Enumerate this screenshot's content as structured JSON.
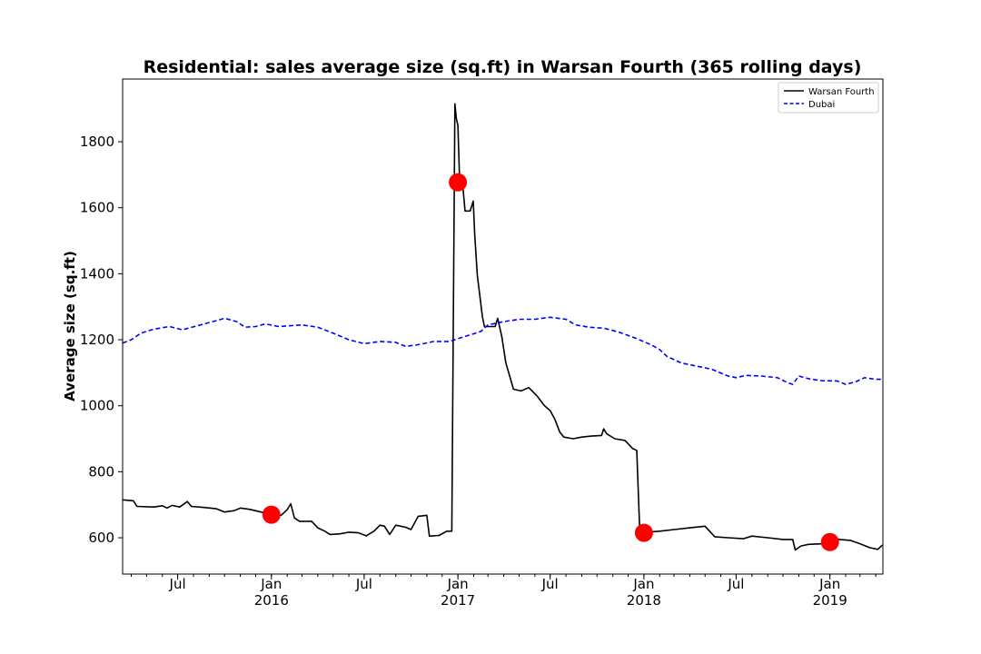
{
  "chart_data": {
    "type": "line",
    "title": "Residential: sales average size (sq.ft) in Warsan Fourth (365 rolling days)",
    "xlabel": "",
    "ylabel": "Average size (sq.ft)",
    "x_range": [
      "2015-03-15",
      "2019-04-15"
    ],
    "ylim": [
      490,
      1990
    ],
    "y_ticks": [
      600,
      800,
      1000,
      1200,
      1400,
      1600,
      1800
    ],
    "x_ticks": [
      {
        "date": "2015-07-01",
        "label": "Jul",
        "year": ""
      },
      {
        "date": "2016-01-01",
        "label": "Jan",
        "year": "2016"
      },
      {
        "date": "2016-07-01",
        "label": "Jul",
        "year": ""
      },
      {
        "date": "2017-01-01",
        "label": "Jan",
        "year": "2017"
      },
      {
        "date": "2017-07-01",
        "label": "Jul",
        "year": ""
      },
      {
        "date": "2018-01-01",
        "label": "Jan",
        "year": "2018"
      },
      {
        "date": "2018-07-01",
        "label": "Jul",
        "year": ""
      },
      {
        "date": "2019-01-01",
        "label": "Jan",
        "year": "2019"
      }
    ],
    "grid": false,
    "legend_position": "top-right",
    "series": [
      {
        "name": "Warsan Fourth",
        "color": "#000000",
        "style": "solid",
        "points": [
          [
            "2015-03-15",
            715
          ],
          [
            "2015-04-05",
            712
          ],
          [
            "2015-04-12",
            695
          ],
          [
            "2015-05-15",
            693
          ],
          [
            "2015-06-01",
            697
          ],
          [
            "2015-06-10",
            690
          ],
          [
            "2015-06-20",
            698
          ],
          [
            "2015-07-05",
            693
          ],
          [
            "2015-07-20",
            710
          ],
          [
            "2015-07-28",
            695
          ],
          [
            "2015-08-20",
            692
          ],
          [
            "2015-09-15",
            688
          ],
          [
            "2015-10-01",
            678
          ],
          [
            "2015-10-20",
            682
          ],
          [
            "2015-11-01",
            690
          ],
          [
            "2015-11-20",
            686
          ],
          [
            "2015-12-20",
            675
          ],
          [
            "2016-01-05",
            672
          ],
          [
            "2016-01-20",
            668
          ],
          [
            "2016-02-01",
            685
          ],
          [
            "2016-02-08",
            703
          ],
          [
            "2016-02-15",
            660
          ],
          [
            "2016-02-25",
            650
          ],
          [
            "2016-03-20",
            650
          ],
          [
            "2016-04-01",
            630
          ],
          [
            "2016-04-15",
            620
          ],
          [
            "2016-04-25",
            610
          ],
          [
            "2016-05-15",
            612
          ],
          [
            "2016-06-01",
            617
          ],
          [
            "2016-06-20",
            615
          ],
          [
            "2016-07-05",
            606
          ],
          [
            "2016-07-20",
            620
          ],
          [
            "2016-08-01",
            638
          ],
          [
            "2016-08-10",
            635
          ],
          [
            "2016-08-20",
            610
          ],
          [
            "2016-09-01",
            638
          ],
          [
            "2016-09-20",
            632
          ],
          [
            "2016-10-01",
            625
          ],
          [
            "2016-10-15",
            665
          ],
          [
            "2016-11-01",
            668
          ],
          [
            "2016-11-06",
            605
          ],
          [
            "2016-11-25",
            607
          ],
          [
            "2016-12-10",
            620
          ],
          [
            "2016-12-20",
            620
          ],
          [
            "2016-12-26",
            1915
          ],
          [
            "2016-12-29",
            1870
          ],
          [
            "2017-01-01",
            1850
          ],
          [
            "2017-01-04",
            1700
          ],
          [
            "2017-01-10",
            1675
          ],
          [
            "2017-01-15",
            1590
          ],
          [
            "2017-01-25",
            1590
          ],
          [
            "2017-01-31",
            1620
          ],
          [
            "2017-02-03",
            1520
          ],
          [
            "2017-02-08",
            1395
          ],
          [
            "2017-02-18",
            1270
          ],
          [
            "2017-02-22",
            1240
          ],
          [
            "2017-03-15",
            1240
          ],
          [
            "2017-03-20",
            1265
          ],
          [
            "2017-03-28",
            1210
          ],
          [
            "2017-04-05",
            1130
          ],
          [
            "2017-04-20",
            1050
          ],
          [
            "2017-05-05",
            1045
          ],
          [
            "2017-05-20",
            1055
          ],
          [
            "2017-06-05",
            1030
          ],
          [
            "2017-06-20",
            1000
          ],
          [
            "2017-07-01",
            985
          ],
          [
            "2017-07-10",
            960
          ],
          [
            "2017-07-20",
            920
          ],
          [
            "2017-07-28",
            905
          ],
          [
            "2017-08-15",
            900
          ],
          [
            "2017-09-01",
            905
          ],
          [
            "2017-09-20",
            908
          ],
          [
            "2017-10-10",
            910
          ],
          [
            "2017-10-14",
            930
          ],
          [
            "2017-10-20",
            915
          ],
          [
            "2017-11-05",
            900
          ],
          [
            "2017-11-25",
            895
          ],
          [
            "2017-12-10",
            870
          ],
          [
            "2017-12-18",
            865
          ],
          [
            "2017-12-24",
            615
          ],
          [
            "2018-01-15",
            618
          ],
          [
            "2018-02-01",
            620
          ],
          [
            "2018-03-01",
            625
          ],
          [
            "2018-04-01",
            630
          ],
          [
            "2018-05-01",
            635
          ],
          [
            "2018-05-20",
            603
          ],
          [
            "2018-06-15",
            600
          ],
          [
            "2018-07-15",
            597
          ],
          [
            "2018-08-01",
            605
          ],
          [
            "2018-09-01",
            600
          ],
          [
            "2018-10-01",
            595
          ],
          [
            "2018-10-20",
            595
          ],
          [
            "2018-10-25",
            563
          ],
          [
            "2018-11-05",
            575
          ],
          [
            "2018-11-20",
            580
          ],
          [
            "2018-12-20",
            582
          ],
          [
            "2019-01-01",
            600
          ],
          [
            "2019-01-20",
            595
          ],
          [
            "2019-02-10",
            592
          ],
          [
            "2019-03-01",
            582
          ],
          [
            "2019-03-20",
            570
          ],
          [
            "2019-04-05",
            565
          ],
          [
            "2019-04-12",
            575
          ],
          [
            "2019-04-15",
            578
          ]
        ]
      },
      {
        "name": "Dubai",
        "color": "#0000ff",
        "style": "dashed",
        "points": [
          [
            "2015-03-15",
            1190
          ],
          [
            "2015-04-01",
            1200
          ],
          [
            "2015-04-20",
            1220
          ],
          [
            "2015-05-15",
            1232
          ],
          [
            "2015-06-15",
            1240
          ],
          [
            "2015-07-10",
            1230
          ],
          [
            "2015-08-15",
            1245
          ],
          [
            "2015-09-15",
            1258
          ],
          [
            "2015-10-01",
            1265
          ],
          [
            "2015-10-25",
            1255
          ],
          [
            "2015-11-10",
            1238
          ],
          [
            "2015-12-01",
            1240
          ],
          [
            "2015-12-20",
            1248
          ],
          [
            "2016-01-15",
            1240
          ],
          [
            "2016-03-01",
            1245
          ],
          [
            "2016-04-01",
            1238
          ],
          [
            "2016-05-01",
            1220
          ],
          [
            "2016-06-01",
            1200
          ],
          [
            "2016-07-01",
            1188
          ],
          [
            "2016-08-01",
            1195
          ],
          [
            "2016-09-01",
            1192
          ],
          [
            "2016-09-20",
            1180
          ],
          [
            "2016-10-15",
            1185
          ],
          [
            "2016-11-15",
            1195
          ],
          [
            "2016-12-15",
            1195
          ],
          [
            "2017-01-15",
            1210
          ],
          [
            "2017-02-15",
            1225
          ],
          [
            "2017-03-01",
            1245
          ],
          [
            "2017-04-01",
            1255
          ],
          [
            "2017-05-01",
            1262
          ],
          [
            "2017-06-01",
            1262
          ],
          [
            "2017-07-01",
            1268
          ],
          [
            "2017-08-01",
            1262
          ],
          [
            "2017-08-20",
            1245
          ],
          [
            "2017-09-15",
            1238
          ],
          [
            "2017-10-15",
            1235
          ],
          [
            "2017-11-15",
            1222
          ],
          [
            "2017-12-15",
            1205
          ],
          [
            "2018-01-15",
            1185
          ],
          [
            "2018-02-01",
            1170
          ],
          [
            "2018-02-15",
            1150
          ],
          [
            "2018-03-15",
            1130
          ],
          [
            "2018-04-15",
            1120
          ],
          [
            "2018-05-15",
            1110
          ],
          [
            "2018-06-15",
            1090
          ],
          [
            "2018-07-01",
            1085
          ],
          [
            "2018-07-20",
            1092
          ],
          [
            "2018-08-20",
            1090
          ],
          [
            "2018-09-20",
            1085
          ],
          [
            "2018-10-10",
            1070
          ],
          [
            "2018-10-20",
            1065
          ],
          [
            "2018-11-01",
            1090
          ],
          [
            "2018-11-20",
            1082
          ],
          [
            "2018-12-15",
            1076
          ],
          [
            "2019-01-15",
            1075
          ],
          [
            "2019-02-01",
            1065
          ],
          [
            "2019-02-20",
            1072
          ],
          [
            "2019-03-10",
            1085
          ],
          [
            "2019-04-01",
            1080
          ],
          [
            "2019-04-15",
            1080
          ]
        ]
      }
    ],
    "markers": {
      "color": "#ff0000",
      "points": [
        [
          "2016-01-01",
          670
        ],
        [
          "2017-01-01",
          1677
        ],
        [
          "2018-01-01",
          615
        ],
        [
          "2019-01-01",
          587
        ]
      ]
    }
  }
}
